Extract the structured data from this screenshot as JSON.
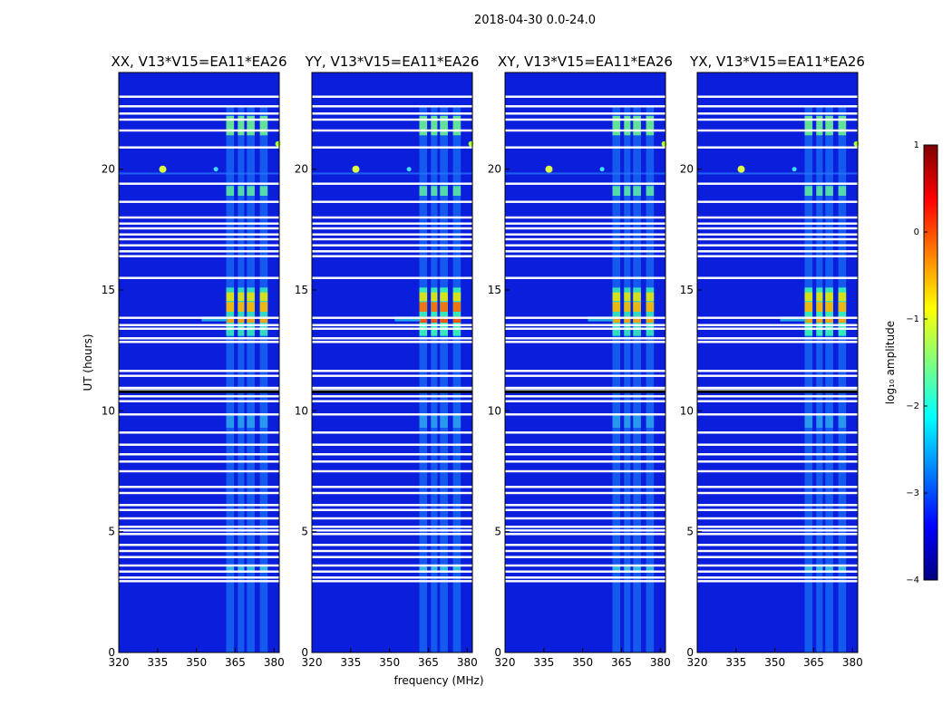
{
  "chart_data": {
    "type": "heatmap",
    "title": "2018-04-30 0.0-24.0",
    "xlabel": "frequency (MHz)",
    "ylabel": "UT (hours)",
    "xlim": [
      320,
      382
    ],
    "ylim": [
      0,
      24
    ],
    "x_ticks": [
      320,
      335,
      350,
      365,
      380
    ],
    "y_ticks": [
      0,
      5,
      10,
      15,
      20
    ],
    "panels": [
      {
        "name": "XX",
        "title": "XX, V13*V15=EA11*EA26"
      },
      {
        "name": "YY",
        "title": "YY, V13*V15=EA11*EA26"
      },
      {
        "name": "XY",
        "title": "XY, V13*V15=EA11*EA26"
      },
      {
        "name": "YX",
        "title": "YX, V13*V15=EA11*EA26"
      }
    ],
    "flagged_hours": [
      23.0,
      22.6,
      22.3,
      22.05,
      21.6,
      20.9,
      19.4,
      18.65,
      18.0,
      17.75,
      17.55,
      17.3,
      17.1,
      16.85,
      16.6,
      16.4,
      15.5,
      13.85,
      13.55,
      13.4,
      13.0,
      12.85,
      11.65,
      11.45,
      10.95,
      10.85,
      10.6,
      10.4,
      9.85,
      9.1,
      8.6,
      8.2,
      7.9,
      7.5,
      6.85,
      6.6,
      6.1,
      5.9,
      5.55,
      5.2,
      5.05,
      4.9,
      4.45,
      4.2,
      3.95,
      3.6,
      3.35,
      3.1,
      2.95
    ],
    "colorbar": {
      "label": "log₁₀ amplitude",
      "min": -4,
      "max": 1,
      "ticks": [
        "1",
        "0",
        "−1",
        "−2",
        "−3",
        "−4"
      ],
      "colormap": "jet",
      "colors": [
        "#00007f",
        "#0000ff",
        "#007fff",
        "#00ffff",
        "#7fff7f",
        "#ffff00",
        "#ff7f00",
        "#ff0000",
        "#7f0000"
      ]
    }
  }
}
